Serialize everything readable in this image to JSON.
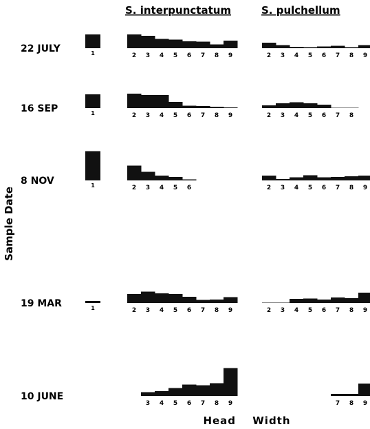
{
  "chart_data": {
    "type": "bar",
    "title": "",
    "xlabel": "Head Width",
    "ylabel": "Sample Date",
    "colors": {
      "bar": "#111111",
      "background": "#ffffff"
    },
    "column_headers": [
      "S. interpunctatum",
      "S. pulchellum"
    ],
    "panels": [
      {
        "date": "22 JULY",
        "col1": {
          "categories": [
            "1"
          ],
          "values": [
            40
          ]
        },
        "interpunctatum": {
          "categories": [
            "2",
            "3",
            "4",
            "5",
            "6",
            "7",
            "8",
            "9"
          ],
          "values": [
            40,
            36,
            27,
            25,
            20,
            19,
            11,
            22
          ]
        },
        "pulchellum": {
          "categories": [
            "2",
            "3",
            "4",
            "5",
            "6",
            "7",
            "8",
            "9"
          ],
          "values": [
            16,
            9,
            4,
            3,
            5,
            7,
            3,
            9
          ]
        }
      },
      {
        "date": "16 SEP",
        "col1": {
          "categories": [
            "1"
          ],
          "values": [
            40
          ]
        },
        "interpunctatum": {
          "categories": [
            "2",
            "3",
            "4",
            "5",
            "6",
            "7",
            "8",
            "9"
          ],
          "values": [
            42,
            38,
            38,
            18,
            7,
            6,
            4,
            2
          ]
        },
        "pulchellum": {
          "categories": [
            "2",
            "3",
            "4",
            "5",
            "6",
            "7",
            "8"
          ],
          "values": [
            8,
            14,
            17,
            14,
            10,
            1,
            1
          ]
        }
      },
      {
        "date": "8 NOV",
        "col1": {
          "categories": [
            "1"
          ],
          "values": [
            85
          ]
        },
        "interpunctatum": {
          "categories": [
            "2",
            "3",
            "4",
            "5",
            "6"
          ],
          "values": [
            43,
            25,
            14,
            10,
            3
          ]
        },
        "pulchellum": {
          "categories": [
            "2",
            "3",
            "4",
            "5",
            "6",
            "7",
            "8",
            "9"
          ],
          "values": [
            14,
            4,
            9,
            15,
            9,
            10,
            12,
            14
          ]
        }
      },
      {
        "date": "19 MAR",
        "col1": {
          "categories": [
            "1"
          ],
          "values": [
            6
          ]
        },
        "interpunctatum": {
          "categories": [
            "2",
            "3",
            "4",
            "5",
            "6",
            "7",
            "8",
            "9"
          ],
          "values": [
            26,
            33,
            28,
            26,
            18,
            9,
            10,
            17
          ]
        },
        "pulchellum": {
          "categories": [
            "2",
            "3",
            "4",
            "5",
            "6",
            "7",
            "8",
            "9"
          ],
          "values": [
            1,
            1,
            12,
            13,
            10,
            16,
            14,
            30
          ]
        }
      },
      {
        "date": "10 JUNE",
        "col1": {
          "categories": [],
          "values": []
        },
        "interpunctatum": {
          "categories": [
            "3",
            "4",
            "5",
            "6",
            "7",
            "8",
            "9"
          ],
          "values": [
            11,
            14,
            23,
            33,
            31,
            37,
            81
          ]
        },
        "pulchellum": {
          "categories": [
            "7",
            "8",
            "9"
          ],
          "values": [
            6,
            6,
            36
          ]
        }
      }
    ]
  }
}
